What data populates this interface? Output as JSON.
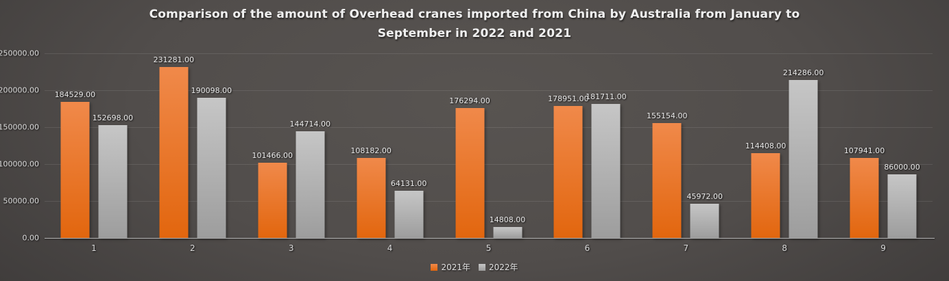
{
  "title": "Comparison of the amount of Overhead cranes imported from China by Australia from January to September in 2022 and 2021",
  "colors": {
    "background_center": "#585451",
    "background_edge": "#2b2a29",
    "title_text": "#f0f0f0",
    "tick_text": "#dcdcdc",
    "data_label_text": "#e8e8e8",
    "gridline": "rgba(255,255,255,0.10)",
    "axis_line": "#b3b3b3",
    "series_2021_orange": "#e8742b",
    "series_2022_gray": "#b1b1b1"
  },
  "chart_data": {
    "type": "bar",
    "title": "Comparison of the amount of Overhead cranes imported from China by Australia from January to September in 2022 and 2021",
    "categories": [
      "1",
      "2",
      "3",
      "4",
      "5",
      "6",
      "7",
      "8",
      "9"
    ],
    "series": [
      {
        "name": "2021年",
        "color_top": "#f0894a",
        "color_bottom": "#e2660e",
        "values": [
          184529,
          231281,
          101466,
          108182,
          176294,
          178951,
          155154,
          114408,
          107941
        ]
      },
      {
        "name": "2022年",
        "color_top": "#c6c6c6",
        "color_bottom": "#9d9d9d",
        "values": [
          152698,
          190098,
          144714,
          64131,
          14808,
          181711,
          45972,
          214286,
          86000
        ]
      }
    ],
    "xlabel": "",
    "ylabel": "",
    "ylim": [
      0,
      250000
    ],
    "y_ticks": [
      0,
      50000,
      100000,
      150000,
      200000,
      250000
    ],
    "y_tick_labels": [
      "0.00",
      "50000.00",
      "100000.00",
      "150000.00",
      "200000.00",
      "250000.00"
    ],
    "value_label_decimals": 2,
    "grid": true,
    "legend_position": "bottom"
  }
}
